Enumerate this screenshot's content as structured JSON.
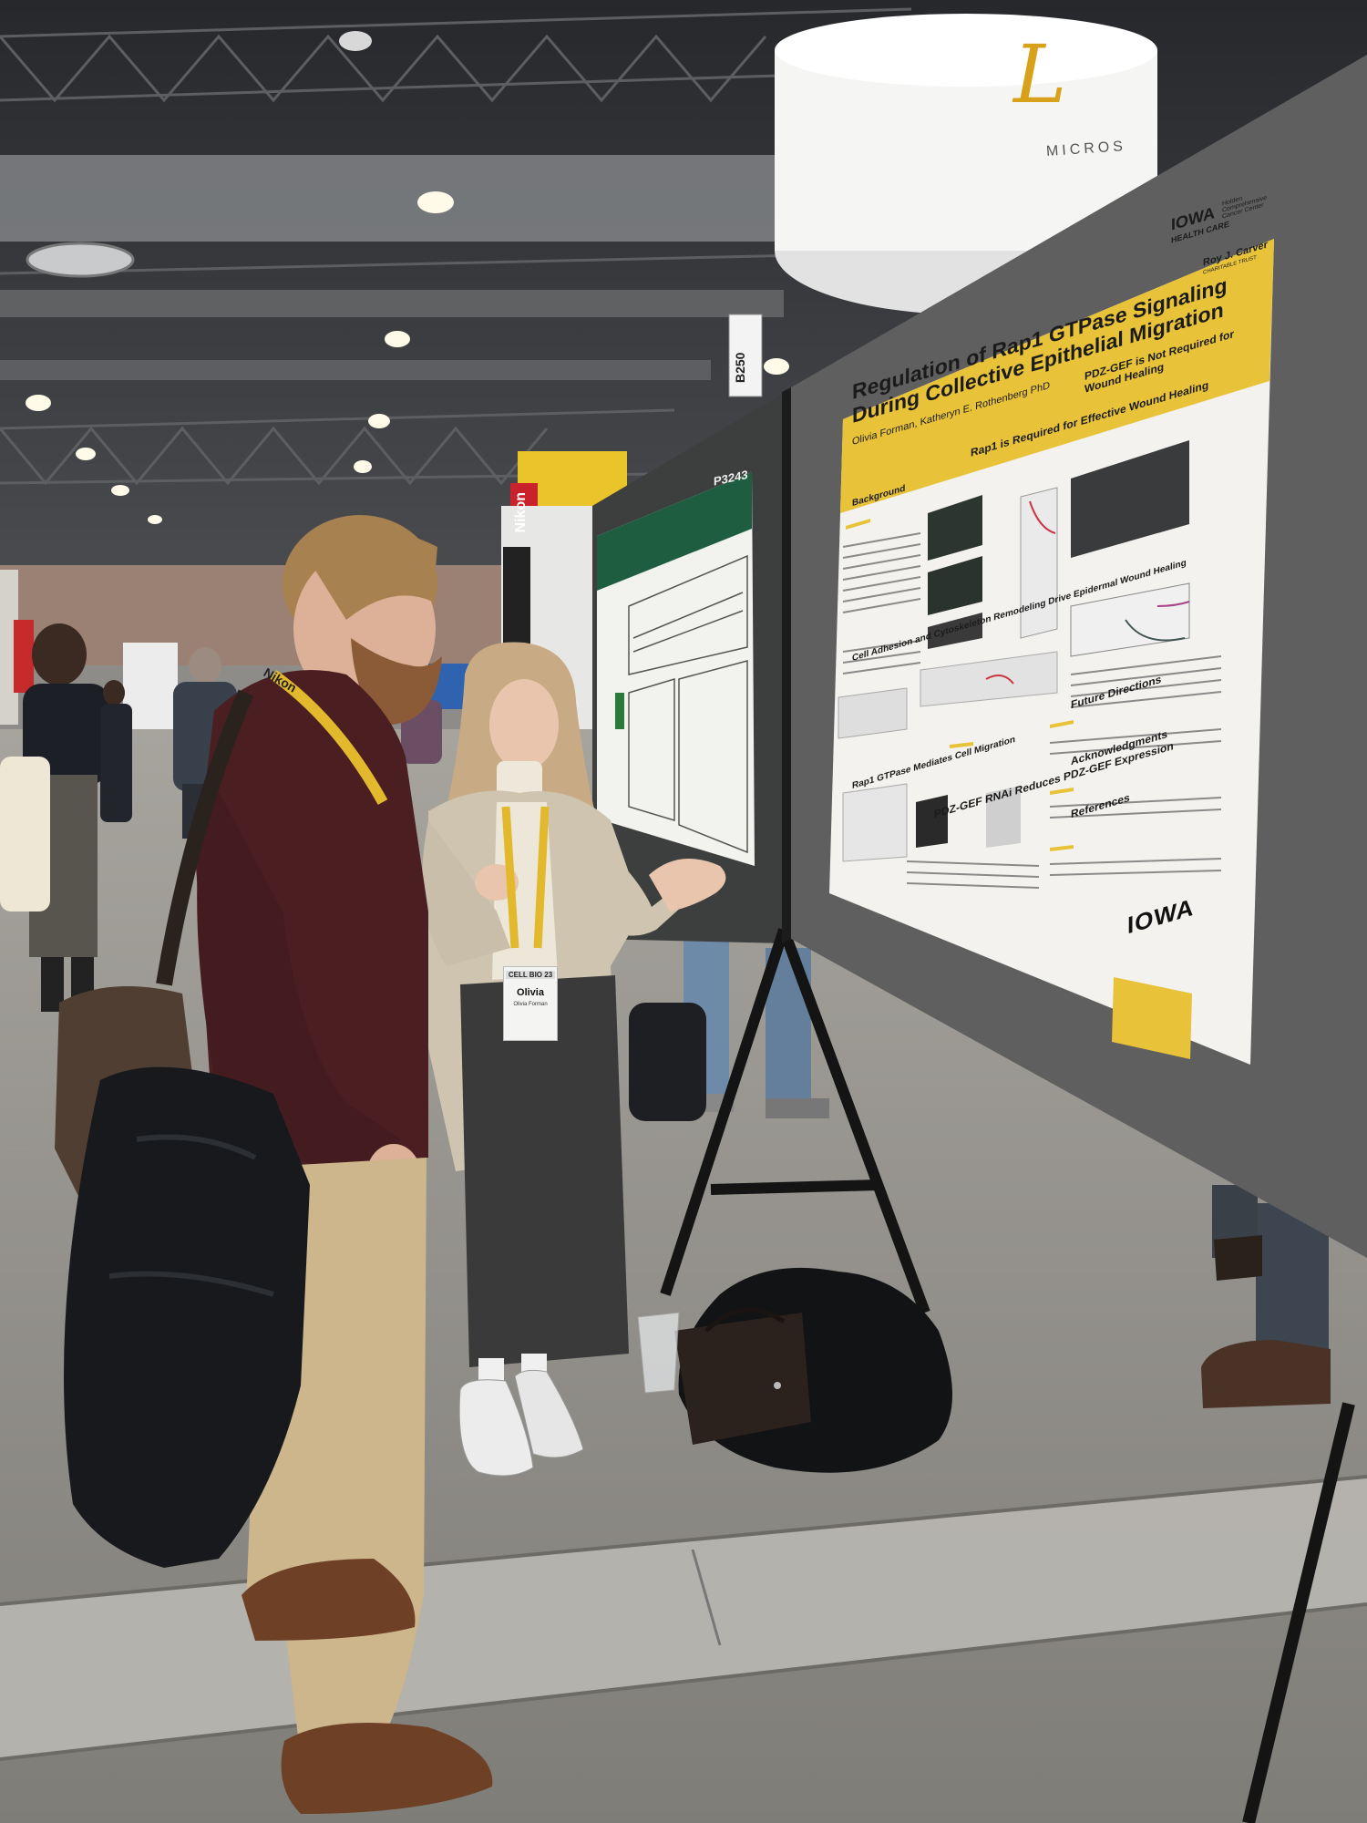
{
  "booth_sign": "B250",
  "brand": {
    "letter": "L",
    "word": "MICROS"
  },
  "lanyard_text": "Nikon",
  "badge": {
    "event": "CELL BIO 23",
    "name": "Olivia",
    "full_name": "Olivia Forman"
  },
  "left_sign": "Nikon",
  "main_poster": {
    "title": "Regulation of Rap1 GTPase Signaling During Collective Epithelial Migration",
    "authors": "Olivia Forman, Katheryn E. Rothenberg PhD",
    "iowa_health": "IOWA",
    "iowa_health_sub": "HEALTH CARE",
    "holden": "Holden Comprehensive Cancer Center",
    "carver": "Roy J. Carver",
    "carver_sub": "CHARITABLE TRUST",
    "section_rap1": "Rap1 is Required for Effective Wound Healing",
    "section_pdz": "PDZ-GEF is Not Required for Wound Healing",
    "section_future": "Future Directions",
    "section_ack": "Acknowledgments",
    "section_refs": "References",
    "section_rnai": "PDZ-GEF RNAi Reduces PDZ-GEF Expression",
    "section_background": "Background",
    "section_adhesion": "Cell Adhesion and Cytoskeleton Remodeling Drive Epidermal Wound Healing",
    "section_migration": "Rap1 GTPase Mediates Cell Migration",
    "iowa_bottom": "IOWA"
  },
  "second_poster": {
    "title": "",
    "number": "P3243"
  },
  "colors": {
    "poster_yellow": "#e8c33a",
    "poster_paper": "#f3f2ee",
    "board_gray": "#5e5f5e",
    "floor": "#8d8c88",
    "ceiling": "#2b2d31",
    "green_header": "#1f5d40"
  }
}
